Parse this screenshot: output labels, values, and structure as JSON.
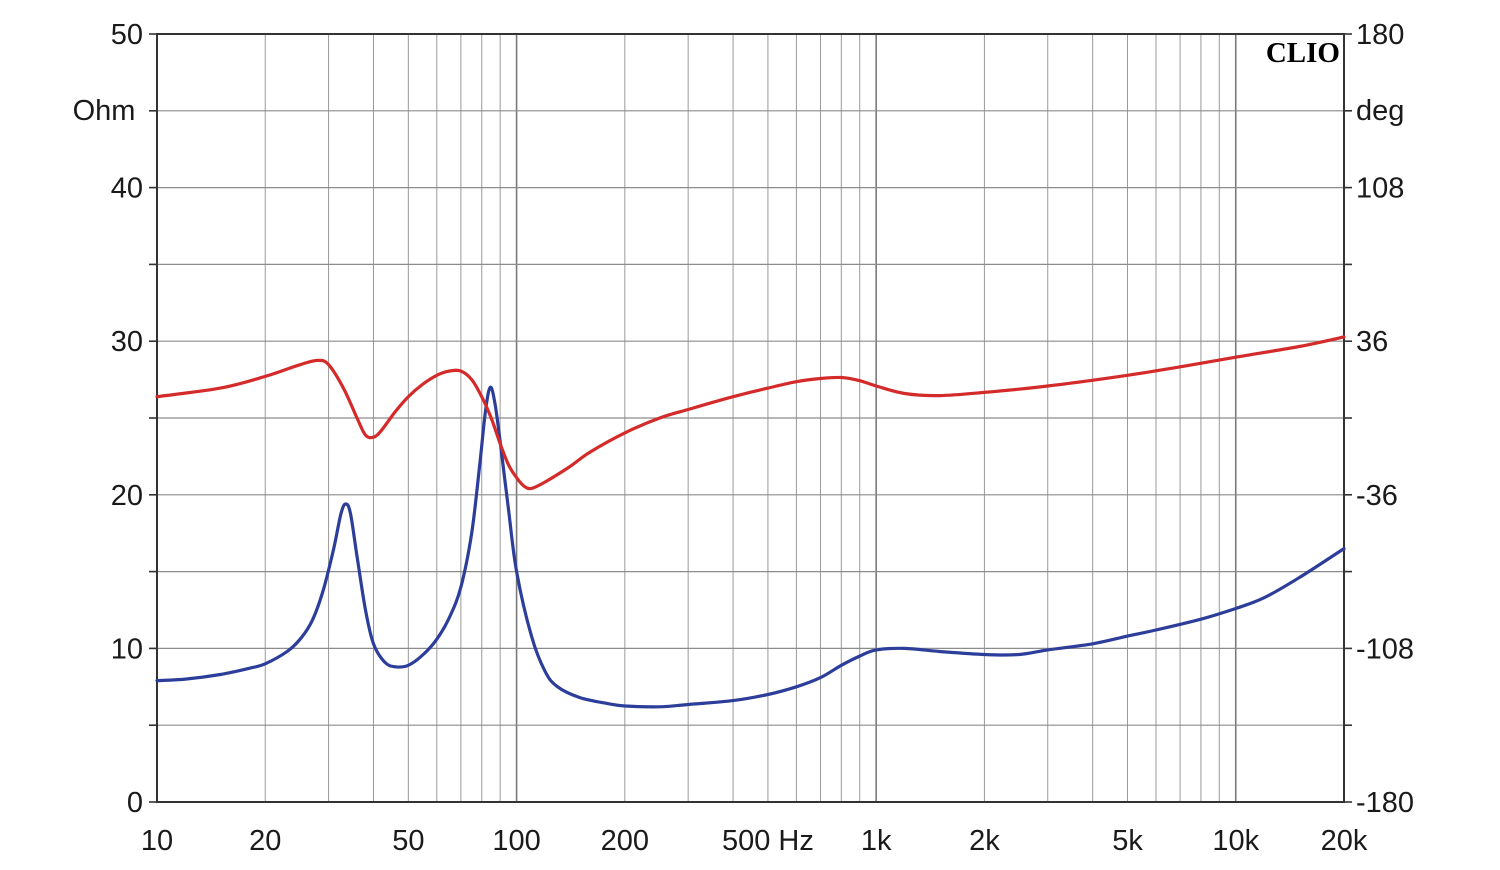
{
  "brand": {
    "text": "CLIO"
  },
  "chart_data": {
    "type": "line",
    "x_scale": "log",
    "xlim": [
      10,
      20000
    ],
    "x_ticks": [
      {
        "value": 10,
        "label": "10"
      },
      {
        "value": 20,
        "label": "20"
      },
      {
        "value": 50,
        "label": "50"
      },
      {
        "value": 100,
        "label": "100"
      },
      {
        "value": 200,
        "label": "200"
      },
      {
        "value": 500,
        "label": "500 Hz"
      },
      {
        "value": 1000,
        "label": "1k"
      },
      {
        "value": 2000,
        "label": "2k"
      },
      {
        "value": 5000,
        "label": "5k"
      },
      {
        "value": 10000,
        "label": "10k"
      },
      {
        "value": 20000,
        "label": "20k"
      }
    ],
    "y_left": {
      "unit_label": "Ohm",
      "ylim": [
        0,
        50
      ],
      "ticks": [
        {
          "value": 0,
          "label": "0"
        },
        {
          "value": 10,
          "label": "10"
        },
        {
          "value": 20,
          "label": "20"
        },
        {
          "value": 30,
          "label": "30"
        },
        {
          "value": 40,
          "label": "40"
        },
        {
          "value": 50,
          "label": "50"
        }
      ]
    },
    "y_right": {
      "unit_label": "deg",
      "ylim": [
        -180,
        180
      ],
      "ticks": [
        {
          "value": -180,
          "label": "-180"
        },
        {
          "value": -108,
          "label": "-108"
        },
        {
          "value": -36,
          "label": "-36"
        },
        {
          "value": 36,
          "label": "36"
        },
        {
          "value": 108,
          "label": "108"
        },
        {
          "value": 180,
          "label": "180"
        }
      ]
    },
    "grid": true,
    "series": [
      {
        "axis": "left",
        "color": "#2c3e9a",
        "points": [
          [
            10,
            7.9
          ],
          [
            12,
            8.0
          ],
          [
            15,
            8.3
          ],
          [
            18,
            8.7
          ],
          [
            20,
            9.0
          ],
          [
            23,
            9.8
          ],
          [
            25,
            10.6
          ],
          [
            27,
            11.8
          ],
          [
            29,
            13.8
          ],
          [
            31,
            16.5
          ],
          [
            32.5,
            18.8
          ],
          [
            33.5,
            19.4
          ],
          [
            34.5,
            18.8
          ],
          [
            36,
            16.0
          ],
          [
            38,
            12.5
          ],
          [
            40,
            10.3
          ],
          [
            43,
            9.1
          ],
          [
            46,
            8.8
          ],
          [
            50,
            8.9
          ],
          [
            55,
            9.6
          ],
          [
            60,
            10.6
          ],
          [
            65,
            12.0
          ],
          [
            70,
            14.0
          ],
          [
            75,
            17.5
          ],
          [
            79,
            22.0
          ],
          [
            82,
            25.5
          ],
          [
            84.5,
            27.0
          ],
          [
            87,
            26.0
          ],
          [
            90,
            23.5
          ],
          [
            95,
            19.0
          ],
          [
            100,
            15.0
          ],
          [
            110,
            10.8
          ],
          [
            120,
            8.5
          ],
          [
            130,
            7.5
          ],
          [
            150,
            6.8
          ],
          [
            180,
            6.4
          ],
          [
            200,
            6.25
          ],
          [
            250,
            6.2
          ],
          [
            300,
            6.35
          ],
          [
            400,
            6.6
          ],
          [
            500,
            7.0
          ],
          [
            600,
            7.5
          ],
          [
            700,
            8.1
          ],
          [
            800,
            8.9
          ],
          [
            900,
            9.5
          ],
          [
            1000,
            9.9
          ],
          [
            1200,
            10.0
          ],
          [
            1500,
            9.8
          ],
          [
            2000,
            9.6
          ],
          [
            2500,
            9.6
          ],
          [
            3000,
            9.9
          ],
          [
            4000,
            10.3
          ],
          [
            5000,
            10.8
          ],
          [
            6000,
            11.2
          ],
          [
            8000,
            11.9
          ],
          [
            10000,
            12.6
          ],
          [
            12000,
            13.3
          ],
          [
            15000,
            14.6
          ],
          [
            20000,
            16.5
          ]
        ]
      },
      {
        "axis": "right",
        "color": "#d42a2a",
        "points": [
          [
            10,
            10.0
          ],
          [
            15,
            14.0
          ],
          [
            20,
            19.5
          ],
          [
            25,
            25.0
          ],
          [
            28,
            27.0
          ],
          [
            30,
            25.0
          ],
          [
            33,
            14.0
          ],
          [
            36,
            0.0
          ],
          [
            38,
            -8.0
          ],
          [
            40,
            -9.0
          ],
          [
            42,
            -6.0
          ],
          [
            46,
            3.0
          ],
          [
            50,
            10.0
          ],
          [
            55,
            16.0
          ],
          [
            60,
            20.0
          ],
          [
            65,
            22.0
          ],
          [
            70,
            22.0
          ],
          [
            75,
            18.0
          ],
          [
            80,
            10.0
          ],
          [
            85,
            0.0
          ],
          [
            90,
            -12.0
          ],
          [
            95,
            -22.0
          ],
          [
            100,
            -28.0
          ],
          [
            105,
            -32.0
          ],
          [
            110,
            -33.0
          ],
          [
            120,
            -30.0
          ],
          [
            140,
            -23.0
          ],
          [
            160,
            -16.0
          ],
          [
            200,
            -7.0
          ],
          [
            250,
            0.0
          ],
          [
            300,
            4.0
          ],
          [
            400,
            10.0
          ],
          [
            500,
            14.0
          ],
          [
            600,
            17.0
          ],
          [
            700,
            18.5
          ],
          [
            800,
            19.0
          ],
          [
            900,
            17.5
          ],
          [
            1000,
            15.0
          ],
          [
            1200,
            11.5
          ],
          [
            1500,
            10.5
          ],
          [
            2000,
            12.0
          ],
          [
            3000,
            15.0
          ],
          [
            5000,
            20.0
          ],
          [
            7000,
            24.0
          ],
          [
            10000,
            28.5
          ],
          [
            15000,
            33.5
          ],
          [
            20000,
            38.0
          ]
        ]
      }
    ]
  }
}
